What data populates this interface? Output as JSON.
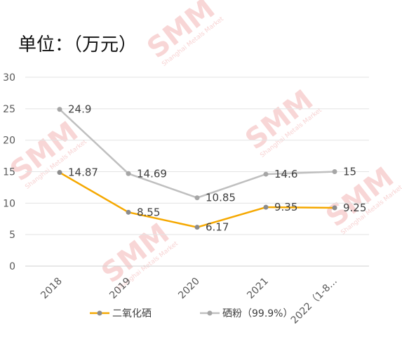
{
  "chart_data": {
    "type": "line",
    "title": "单位：（万元）",
    "categories": [
      "2018",
      "2019",
      "2020",
      "2021",
      "2022（1-8..."
    ],
    "ylim": [
      0,
      30
    ],
    "yticks": [
      0,
      5,
      10,
      15,
      20,
      25,
      30
    ],
    "grid": true,
    "legend_position": "bottom",
    "series": [
      {
        "name": "二氧化硒",
        "color": "#f5a800",
        "marker_color": "#8c8c8c",
        "values": [
          14.87,
          8.55,
          6.17,
          9.35,
          9.25
        ],
        "labels": [
          "14.87",
          "8.55",
          "6.17",
          "9.35",
          "9.25"
        ]
      },
      {
        "name": "硒粉（99.9%）",
        "color": "#bfbfbf",
        "marker_color": "#a6a6a6",
        "values": [
          24.9,
          14.69,
          10.85,
          14.6,
          15
        ],
        "labels": [
          "24.9",
          "14.69",
          "10.85",
          "14.6",
          "15"
        ]
      }
    ]
  },
  "watermark": {
    "brand": "SMM",
    "tagline": "Shanghai Metals Market",
    "color": "#f3b5b5"
  }
}
